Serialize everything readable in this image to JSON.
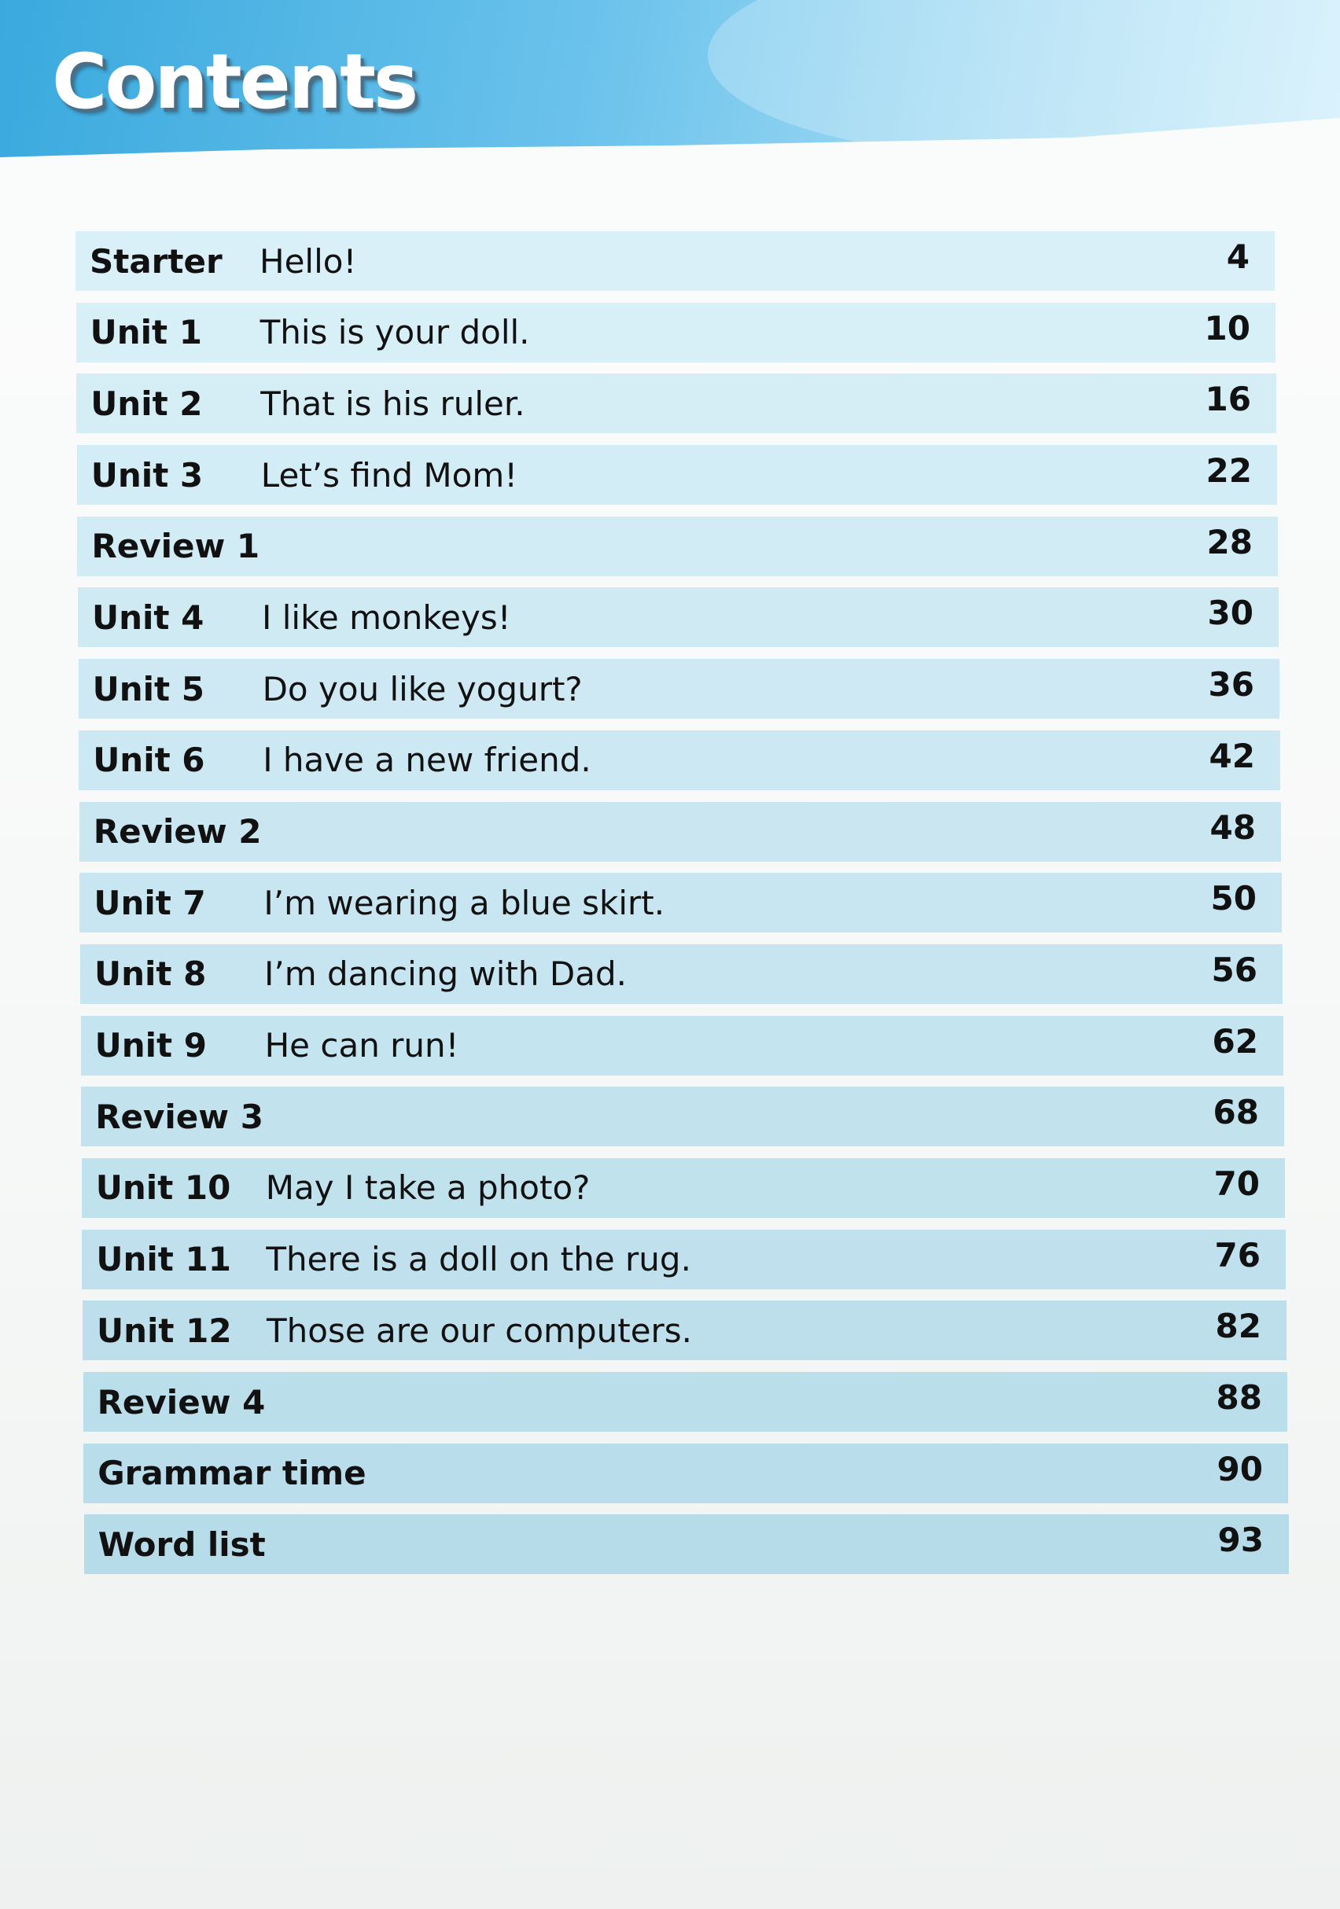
{
  "header": {
    "title": "Contents"
  },
  "colors": {
    "header_blue": "#3aa9de",
    "row_light": "#d9f0f8",
    "row_dark": "#b7dce9"
  },
  "entries": [
    {
      "label": "Starter",
      "title": "Hello!",
      "page": "4"
    },
    {
      "label": "Unit 1",
      "title": "This is your doll.",
      "page": "10"
    },
    {
      "label": "Unit 2",
      "title": "That is his ruler.",
      "page": "16"
    },
    {
      "label": "Unit 3",
      "title": "Let’s find Mom!",
      "page": "22"
    },
    {
      "label": "Review 1",
      "title": "",
      "page": "28"
    },
    {
      "label": "Unit 4",
      "title": "I like monkeys!",
      "page": "30"
    },
    {
      "label": "Unit 5",
      "title": "Do you like yogurt?",
      "page": "36"
    },
    {
      "label": "Unit 6",
      "title": "I have a new friend.",
      "page": "42"
    },
    {
      "label": "Review 2",
      "title": "",
      "page": "48"
    },
    {
      "label": "Unit 7",
      "title": "I’m wearing a blue skirt.",
      "page": "50"
    },
    {
      "label": "Unit 8",
      "title": "I’m dancing with Dad.",
      "page": "56"
    },
    {
      "label": "Unit 9",
      "title": "He can run!",
      "page": "62"
    },
    {
      "label": "Review 3",
      "title": "",
      "page": "68"
    },
    {
      "label": "Unit 10",
      "title": "May I take a photo?",
      "page": "70"
    },
    {
      "label": "Unit 11",
      "title": "There is a doll on the rug.",
      "page": "76"
    },
    {
      "label": "Unit 12",
      "title": "Those are our computers.",
      "page": "82"
    },
    {
      "label": "Review 4",
      "title": "",
      "page": "88"
    },
    {
      "label": "Grammar time",
      "title": "",
      "page": "90"
    },
    {
      "label": "Word list",
      "title": "",
      "page": "93"
    }
  ]
}
